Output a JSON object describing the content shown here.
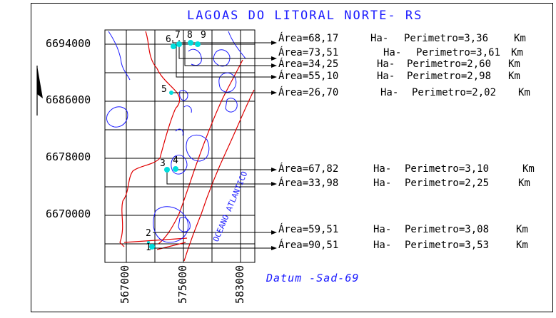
{
  "title": "LAGOAS DO LITORAL NORTE- RS",
  "datum": "Datum -Sad-69",
  "ocean_label": "OCEANO ATLANTICO",
  "y_axis_labels": [
    "6694000",
    "6686000",
    "6678000",
    "6670000"
  ],
  "x_axis_labels": [
    "567000",
    "575000",
    "583000"
  ],
  "lake_markers": [
    "1",
    "2",
    "3",
    "4",
    "5",
    "6",
    "7",
    "8",
    "9"
  ],
  "lakes": [
    {
      "id": "6",
      "area_label": "Área=68,17",
      "area_unit": "Ha-",
      "perimeter_label": "Perimetro=3,36",
      "perimeter_unit": "Km"
    },
    {
      "id": "7",
      "area_label": "Área=73,51",
      "area_unit": "Ha-",
      "perimeter_label": "Perimetro=3,61",
      "perimeter_unit": "Km"
    },
    {
      "id": "8",
      "area_label": "Área=34,25",
      "area_unit": "Ha-",
      "perimeter_label": "Perimetro=2,60",
      "perimeter_unit": "Km"
    },
    {
      "id": "9",
      "area_label": "Área=55,10",
      "area_unit": "Ha-",
      "perimeter_label": "Perimetro=2,98",
      "perimeter_unit": "Km"
    },
    {
      "id": "5",
      "area_label": "Área=26,70",
      "area_unit": "Ha-",
      "perimeter_label": "Perimetro=2,02",
      "perimeter_unit": "Km"
    },
    {
      "id": "4",
      "area_label": "Área=67,82",
      "area_unit": "Ha-",
      "perimeter_label": "Perimetro=3,10",
      "perimeter_unit": "Km"
    },
    {
      "id": "3",
      "area_label": "Área=33,98",
      "area_unit": "Ha-",
      "perimeter_label": "Perimetro=2,25",
      "perimeter_unit": "Km"
    },
    {
      "id": "2",
      "area_label": "Área=59,51",
      "area_unit": "Ha-",
      "perimeter_label": "Perimetro=3,08",
      "perimeter_unit": "Km"
    },
    {
      "id": "1",
      "area_label": "Área=90,51",
      "area_unit": "Ha-",
      "perimeter_label": "Perimetro=3,53",
      "perimeter_unit": "Km"
    }
  ],
  "colors": {
    "title": "#1a1aff",
    "lake_outline": "#1a1aff",
    "road": "#e00000",
    "marker": "#00dddd",
    "grid": "#000000"
  }
}
